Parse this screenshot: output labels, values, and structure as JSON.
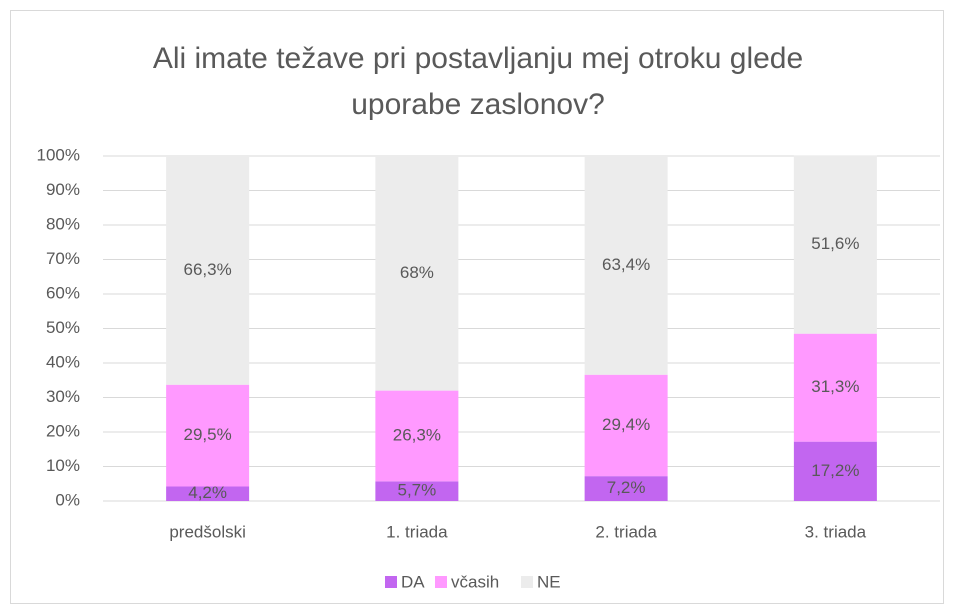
{
  "chart_data": {
    "type": "stacked_bar",
    "title": "Ali imate težave pri postavljanju mej otroku glede uporabe zaslonov?",
    "categories": [
      "predšolski",
      "1. triada",
      "2. triada",
      "3. triada"
    ],
    "series": [
      {
        "name": "DA",
        "color": "#c266f0",
        "values": [
          4.2,
          5.7,
          7.2,
          17.2
        ],
        "value_labels": [
          "4,2%",
          "5,7%",
          "7,2%",
          "17,2%"
        ]
      },
      {
        "name": "včasih",
        "color": "#ff99ff",
        "values": [
          29.5,
          26.3,
          29.4,
          31.3
        ],
        "value_labels": [
          "29,5%",
          "26,3%",
          "29,4%",
          "31,3%"
        ]
      },
      {
        "name": "NE",
        "color": "#ececec",
        "values": [
          66.3,
          68,
          63.4,
          51.6
        ],
        "value_labels": [
          "66,3%",
          "68%",
          "63,4%",
          "51,6%"
        ]
      }
    ],
    "ylim": [
      0,
      100
    ],
    "yticks": [
      {
        "value": 0,
        "label": "0%"
      },
      {
        "value": 10,
        "label": "10%"
      },
      {
        "value": 20,
        "label": "20%"
      },
      {
        "value": 30,
        "label": "30%"
      },
      {
        "value": 40,
        "label": "40%"
      },
      {
        "value": 50,
        "label": "50%"
      },
      {
        "value": 60,
        "label": "60%"
      },
      {
        "value": 70,
        "label": "70%"
      },
      {
        "value": 80,
        "label": "80%"
      },
      {
        "value": 90,
        "label": "90%"
      },
      {
        "value": 100,
        "label": "100%"
      }
    ],
    "grid": true,
    "legend": "bottom"
  }
}
